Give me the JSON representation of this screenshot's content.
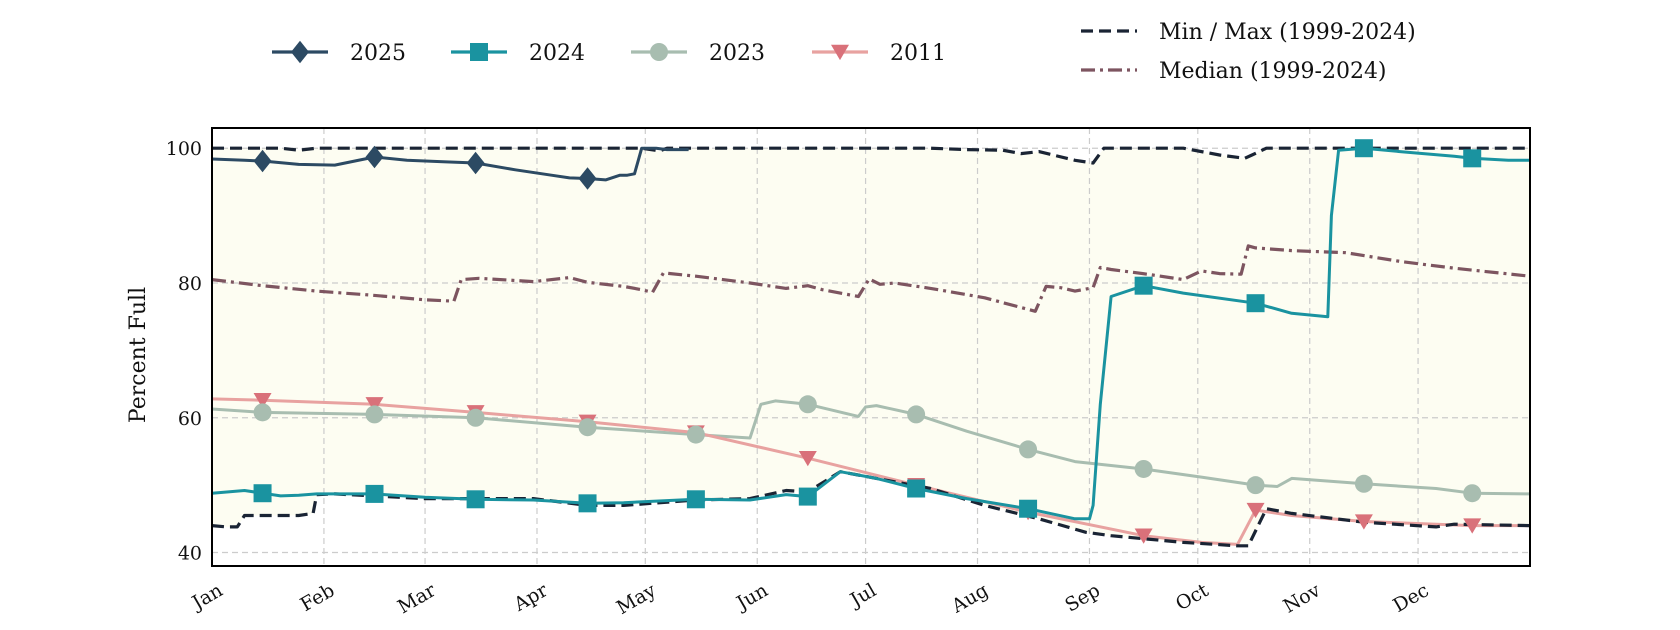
{
  "chart_data": {
    "type": "line",
    "ylabel": "Percent Full",
    "xlabel": "",
    "ylim": [
      38,
      103
    ],
    "xlim": [
      1,
      366
    ],
    "yticks": [
      40,
      60,
      80,
      100
    ],
    "x_unit": "day of year",
    "month_ticks": [
      {
        "label": "Jan",
        "day": 1
      },
      {
        "label": "Feb",
        "day": 32
      },
      {
        "label": "Mar",
        "day": 60
      },
      {
        "label": "Apr",
        "day": 91
      },
      {
        "label": "May",
        "day": 121
      },
      {
        "label": "Jun",
        "day": 152
      },
      {
        "label": "Jul",
        "day": 182
      },
      {
        "label": "Aug",
        "day": 213
      },
      {
        "label": "Sep",
        "day": 244
      },
      {
        "label": "Oct",
        "day": 274
      },
      {
        "label": "Nov",
        "day": 305
      },
      {
        "label": "Dec",
        "day": 335
      }
    ],
    "grid": true,
    "fill_between_minmax_color": "#fdfdf2",
    "series": [
      {
        "name": "2025",
        "color": "#2c4a63",
        "marker": "diamond",
        "style": "solid",
        "x": [
          1,
          10,
          15,
          25,
          35,
          46,
          55,
          65,
          74,
          85,
          95,
          100,
          105,
          110,
          114,
          116,
          118,
          120,
          124,
          127,
          133
        ],
        "y": [
          98.4,
          98.2,
          98.1,
          97.6,
          97.5,
          98.7,
          98.2,
          98.0,
          97.8,
          96.8,
          96.0,
          95.6,
          95.5,
          95.3,
          96.0,
          96.0,
          96.2,
          100.0,
          100.0,
          99.8,
          99.8
        ],
        "markers_x": [
          15,
          46,
          74,
          105
        ]
      },
      {
        "name": "2024",
        "color": "#1a93a0",
        "marker": "square",
        "style": "solid",
        "x": [
          1,
          10,
          15,
          20,
          25,
          30,
          46,
          60,
          74,
          90,
          105,
          115,
          135,
          150,
          160,
          166,
          175,
          185,
          196,
          210,
          227,
          240,
          244,
          245,
          247,
          250,
          259,
          270,
          290,
          300,
          310,
          311,
          313,
          320,
          330,
          345,
          350,
          360,
          366
        ],
        "y": [
          48.8,
          49.2,
          48.8,
          48.4,
          48.5,
          48.7,
          48.7,
          48.2,
          47.9,
          47.8,
          47.3,
          47.4,
          47.9,
          47.8,
          48.6,
          48.3,
          52.0,
          51.0,
          49.5,
          48.0,
          46.5,
          45.0,
          45.0,
          47.0,
          62.0,
          78.0,
          79.6,
          78.5,
          77.0,
          75.5,
          75.0,
          90.0,
          99.7,
          100.0,
          99.5,
          98.8,
          98.5,
          98.2,
          98.2
        ],
        "markers_x": [
          15,
          46,
          74,
          105,
          135,
          166,
          196,
          227,
          259,
          290,
          320,
          350
        ]
      },
      {
        "name": "2023",
        "color": "#a8bdb0",
        "marker": "circle",
        "style": "solid",
        "x": [
          1,
          15,
          46,
          74,
          105,
          135,
          150,
          153,
          157,
          166,
          180,
          182,
          185,
          196,
          210,
          227,
          240,
          259,
          275,
          290,
          296,
          300,
          320,
          340,
          350,
          366
        ],
        "y": [
          61.3,
          60.8,
          60.5,
          60.0,
          58.6,
          57.5,
          57.0,
          62.0,
          62.5,
          62.0,
          60.2,
          61.6,
          61.8,
          60.5,
          58.0,
          55.3,
          53.5,
          52.4,
          51.2,
          50.0,
          49.8,
          51.0,
          50.2,
          49.5,
          48.8,
          48.7
        ],
        "markers_x": [
          15,
          46,
          74,
          105,
          135,
          166,
          196,
          227,
          259,
          290,
          320,
          350
        ]
      },
      {
        "name": "2011",
        "color": "#e8a2a0",
        "marker": "triangle-down",
        "marker_color": "#d9717a",
        "style": "solid",
        "x": [
          1,
          15,
          46,
          74,
          105,
          135,
          166,
          196,
          227,
          259,
          275,
          285,
          290,
          300,
          320,
          350,
          366
        ],
        "y": [
          62.8,
          62.6,
          62.0,
          60.8,
          59.4,
          57.8,
          54.0,
          50.0,
          46.0,
          42.5,
          41.5,
          41.2,
          46.3,
          45.5,
          44.6,
          44.0,
          44.0
        ],
        "markers_x": [
          15,
          46,
          74,
          105,
          135,
          166,
          196,
          227,
          259,
          290,
          320,
          350
        ]
      },
      {
        "name": "Min / Max (1999-2024)",
        "color": "#1a2434",
        "style": "dashed",
        "role": "min",
        "x": [
          1,
          5,
          8,
          10,
          25,
          29,
          30,
          35,
          60,
          90,
          105,
          115,
          135,
          150,
          160,
          166,
          175,
          185,
          200,
          215,
          230,
          243,
          250,
          270,
          285,
          288,
          293,
          300,
          320,
          340,
          345,
          366
        ],
        "y": [
          44.0,
          43.8,
          43.8,
          45.5,
          45.5,
          45.8,
          48.6,
          48.7,
          48.0,
          48.0,
          47.0,
          47.0,
          47.8,
          48.0,
          49.2,
          49.0,
          52.0,
          51.0,
          49.5,
          47.0,
          45.0,
          43.0,
          42.5,
          41.5,
          41.0,
          41.0,
          46.5,
          45.8,
          44.5,
          43.8,
          44.2,
          44.0
        ]
      },
      {
        "name": "Max (1999-2024)",
        "color": "#1a2434",
        "style": "dashed",
        "role": "max",
        "legend": false,
        "x": [
          1,
          20,
          25,
          30,
          120,
          125,
          127,
          130,
          200,
          210,
          220,
          225,
          230,
          240,
          245,
          248,
          270,
          280,
          287,
          289,
          293,
          366
        ],
        "y": [
          100.0,
          100.0,
          99.7,
          100.0,
          100.0,
          99.6,
          100.0,
          100.0,
          100.0,
          99.8,
          99.7,
          99.2,
          99.5,
          98.2,
          97.8,
          100.0,
          100.0,
          99.0,
          98.5,
          99.0,
          100.0,
          100.0
        ]
      },
      {
        "name": "Median (1999-2024)",
        "color": "#7d5560",
        "style": "dashdot",
        "x": [
          1,
          15,
          30,
          45,
          60,
          68,
          70,
          75,
          90,
          100,
          105,
          115,
          120,
          123,
          126,
          135,
          150,
          160,
          166,
          170,
          180,
          183,
          186,
          190,
          200,
          215,
          229,
          232,
          236,
          240,
          245,
          247,
          250,
          260,
          270,
          275,
          280,
          286,
          288,
          290,
          300,
          315,
          330,
          345,
          366
        ],
        "y": [
          80.5,
          79.6,
          78.8,
          78.2,
          77.5,
          77.3,
          80.5,
          80.7,
          80.2,
          80.8,
          80.1,
          79.5,
          79.0,
          78.6,
          81.5,
          81.0,
          80.0,
          79.2,
          79.6,
          79.0,
          78.0,
          80.6,
          79.8,
          80.0,
          79.2,
          77.8,
          75.8,
          79.5,
          79.3,
          78.8,
          79.3,
          82.3,
          82.0,
          81.3,
          80.5,
          81.8,
          81.4,
          81.3,
          85.5,
          85.2,
          84.8,
          84.5,
          83.2,
          82.2,
          81.0
        ]
      }
    ],
    "legend": [
      {
        "label": "2025",
        "series": 0
      },
      {
        "label": "2024",
        "series": 1
      },
      {
        "label": "2023",
        "series": 2
      },
      {
        "label": "2011",
        "series": 3
      },
      {
        "label": "Min / Max (1999-2024)",
        "series": 4
      },
      {
        "label": "Median (1999-2024)",
        "series": 6
      }
    ]
  }
}
